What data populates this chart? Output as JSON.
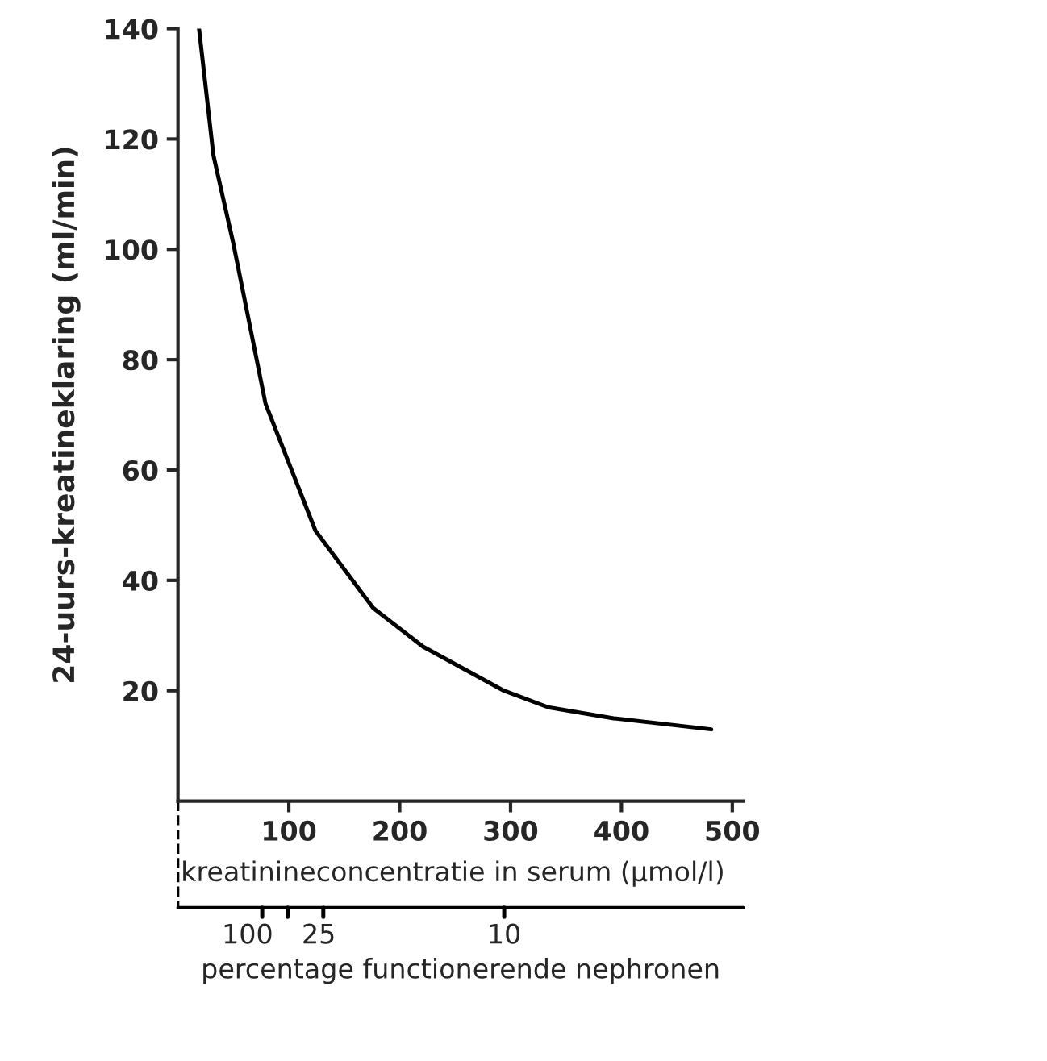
{
  "chart_data": {
    "type": "line",
    "xlabel": "kreatinineconcentratie in serum (µmol/l)",
    "ylabel": "24-uurs-kreatineklaring (ml/min)",
    "annotations": [
      "100",
      "25",
      "10",
      "percentage functionerende nephronen"
    ],
    "x": [
      19,
      32,
      50,
      79,
      124,
      176,
      221,
      294,
      334,
      393,
      481
    ],
    "series": [
      {
        "color": "#000000",
        "values": [
          140,
          117,
          101,
          72,
          49,
          35,
          28,
          20,
          17,
          15,
          13
        ]
      }
    ],
    "xlim": [
      0,
      510
    ],
    "xticks": [
      100,
      200,
      300,
      400,
      500
    ],
    "ylim": [
      0,
      140
    ],
    "yticks": [
      20,
      40,
      60,
      80,
      100,
      120,
      140
    ],
    "grid": false,
    "legend": false,
    "marker": "none",
    "line_style": "solid"
  }
}
